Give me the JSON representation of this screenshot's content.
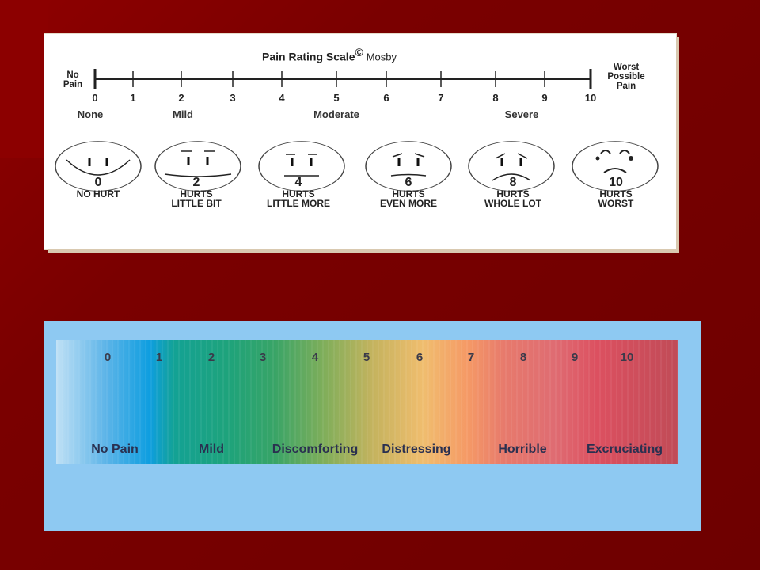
{
  "face_scale": {
    "title": "Pain Rating Scale",
    "copyright": "©",
    "publisher": "Mosby",
    "left_end_label": [
      "No",
      "Pain"
    ],
    "right_end_label": [
      "Worst",
      "Possible",
      "Pain"
    ],
    "numbers": [
      "0",
      "1",
      "2",
      "3",
      "4",
      "5",
      "6",
      "7",
      "8",
      "9",
      "10"
    ],
    "categories": [
      "None",
      "Mild",
      "Moderate",
      "Severe"
    ],
    "faces": [
      {
        "number": "0",
        "line1": "NO HURT",
        "line2": "",
        "icon": "smiling-face-icon"
      },
      {
        "number": "2",
        "line1": "HURTS",
        "line2": "LITTLE BIT",
        "icon": "slight-smile-face-icon"
      },
      {
        "number": "4",
        "line1": "HURTS",
        "line2": "LITTLE MORE",
        "icon": "neutral-face-icon"
      },
      {
        "number": "6",
        "line1": "HURTS",
        "line2": "EVEN MORE",
        "icon": "worried-face-icon"
      },
      {
        "number": "8",
        "line1": "HURTS",
        "line2": "WHOLE LOT",
        "icon": "sad-face-icon"
      },
      {
        "number": "10",
        "line1": "HURTS",
        "line2": "WORST",
        "icon": "crying-face-icon"
      }
    ]
  },
  "color_scale": {
    "numbers": [
      "0",
      "1",
      "2",
      "3",
      "4",
      "5",
      "6",
      "7",
      "8",
      "9",
      "10"
    ],
    "descriptors": [
      "No Pain",
      "Mild",
      "Discomforting",
      "Distressing",
      "Horrible",
      "Excruciating"
    ]
  },
  "colors": {
    "slide_background": "#7a0000",
    "color_panel": "#8ec9f2",
    "text_dark": "#2a3050"
  }
}
